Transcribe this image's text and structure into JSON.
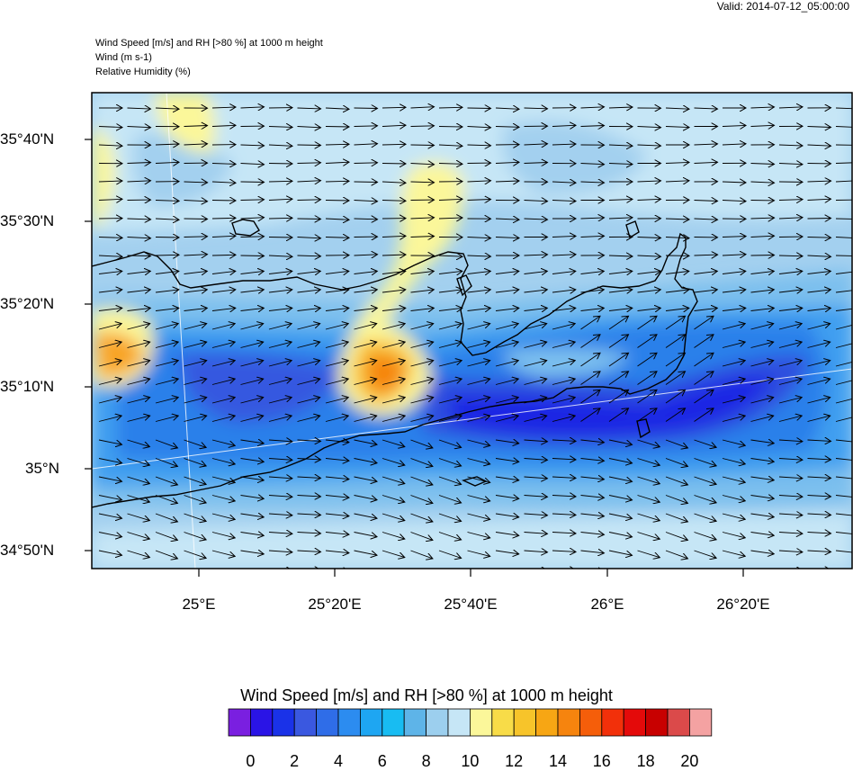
{
  "valid_label": "Valid: 2014-07-12_05:00:00",
  "header": {
    "line1": "Wind Speed [m/s] and RH [>80 %] at 1000 m height",
    "line2": "Wind   (m s-1)",
    "line3": "Relative Humidity   (%)"
  },
  "lat_labels": [
    "35°40'N",
    "35°30'N",
    "35°20'N",
    "35°10'N",
    "35°N",
    "34°50'N"
  ],
  "lon_labels": [
    "25°E",
    "25°20'E",
    "25°40'E",
    "26°E",
    "26°20'E"
  ],
  "colorbar": {
    "title": "Wind Speed [m/s] and RH [>80 %] at 1000 m height",
    "tick_labels": [
      "0",
      "2",
      "4",
      "6",
      "8",
      "10",
      "12",
      "14",
      "16",
      "18",
      "20"
    ],
    "colors": [
      "#7a1fe0",
      "#2a14e6",
      "#1a32e8",
      "#3a58e0",
      "#2f6de8",
      "#2c8cf0",
      "#1ea6f2",
      "#18bcf2",
      "#5eb4e8",
      "#9ccfee",
      "#c6e6f6",
      "#fbf79a",
      "#f8dc48",
      "#f7c42a",
      "#f7a614",
      "#f6840e",
      "#f55e0a",
      "#f2300a",
      "#e40a0a",
      "#c80000",
      "#db4a4a",
      "#f4a2a2"
    ]
  }
}
